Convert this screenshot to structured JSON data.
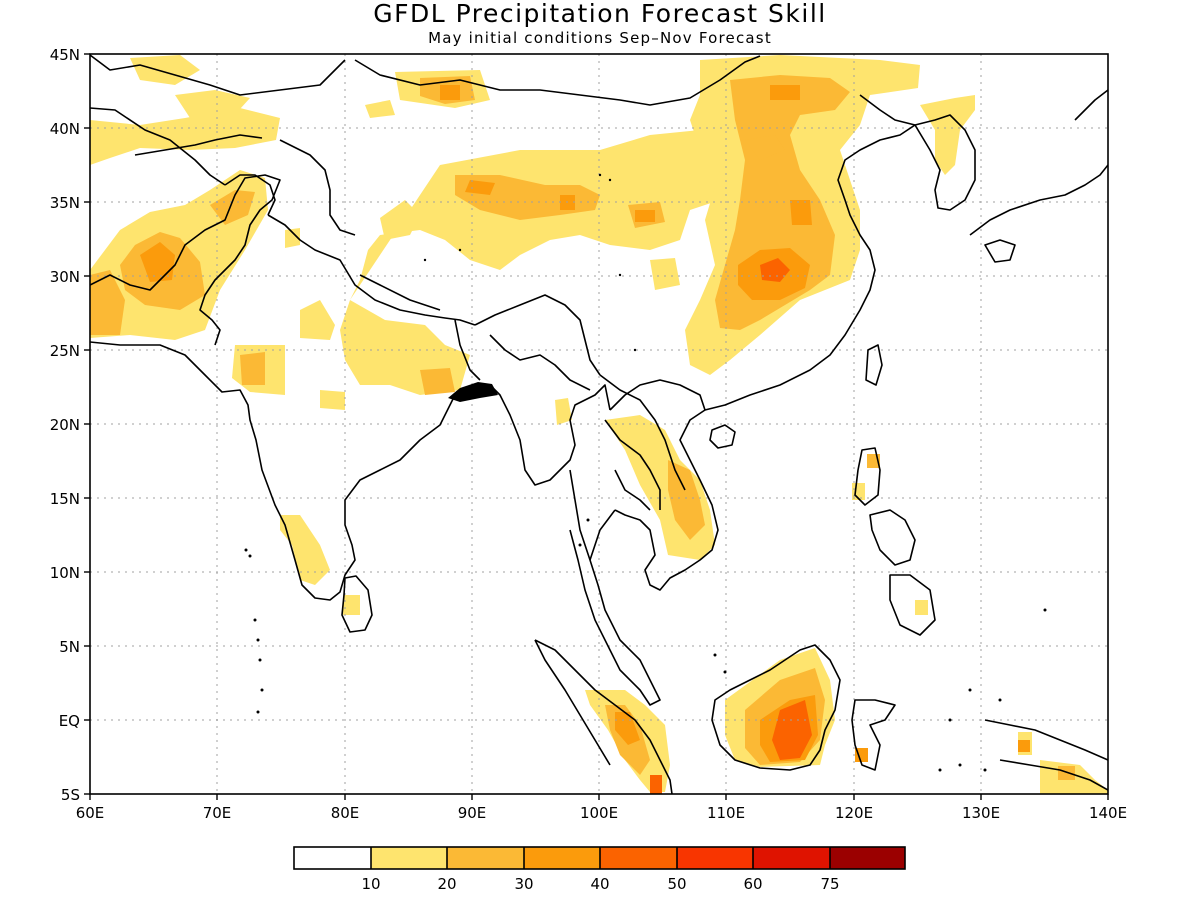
{
  "title": "GFDL Precipitation Forecast Skill",
  "subtitle": "May initial conditions  Sep–Nov Forecast",
  "map": {
    "region": "South and East Asia",
    "lon_range": [
      60,
      140
    ],
    "lat_range": [
      -5,
      45
    ],
    "grid": true,
    "x_ticks": [
      "60E",
      "70E",
      "80E",
      "90E",
      "100E",
      "110E",
      "120E",
      "130E",
      "140E"
    ],
    "y_ticks": [
      "45N",
      "40N",
      "35N",
      "30N",
      "25N",
      "20N",
      "15N",
      "10N",
      "5N",
      "EQ",
      "5S"
    ],
    "skill_regions": [
      {
        "name": "Iran / Afghanistan / Pakistan",
        "level": 2
      },
      {
        "name": "Tajikistan / Kyrgyzstan",
        "level": 1
      },
      {
        "name": "Northern India / Himalaya",
        "level": 1
      },
      {
        "name": "Tibetan Plateau",
        "level": 2
      },
      {
        "name": "Mongolia / North China",
        "level": 2
      },
      {
        "name": "Sichuan / Central China",
        "level": 3
      },
      {
        "name": "Korea",
        "level": 1
      },
      {
        "name": "Laos / Vietnam",
        "level": 2
      },
      {
        "name": "Southern India",
        "level": 1
      },
      {
        "name": "Sumatra",
        "level": 3
      },
      {
        "name": "Borneo",
        "level": 4
      },
      {
        "name": "Sulawesi",
        "level": 3
      },
      {
        "name": "New Guinea",
        "level": 2
      }
    ]
  },
  "colorbar": {
    "colors": [
      "#ffffff",
      "#fee46e",
      "#fbb935",
      "#fb9b0c",
      "#fb6300",
      "#f83500",
      "#df1300",
      "#9b0000"
    ],
    "labels": [
      "10",
      "20",
      "30",
      "40",
      "50",
      "60",
      "75"
    ]
  }
}
